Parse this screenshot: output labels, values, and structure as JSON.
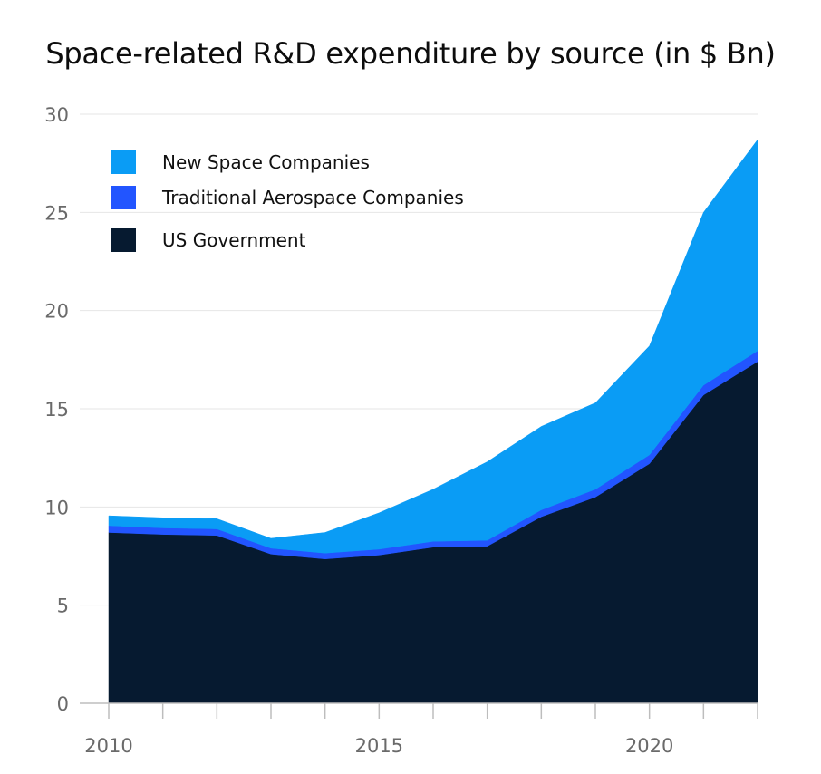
{
  "chart_data": {
    "type": "area",
    "stacked": true,
    "title": "Space-related R&D expenditure by source (in $ Bn)",
    "xlabel": "",
    "ylabel": "",
    "x": [
      2010,
      2011,
      2012,
      2013,
      2014,
      2015,
      2016,
      2017,
      2018,
      2019,
      2020,
      2021,
      2022
    ],
    "xlim": [
      2010,
      2022
    ],
    "ylim": [
      0,
      30
    ],
    "y_ticks": [
      0,
      5,
      10,
      15,
      20,
      25,
      30
    ],
    "x_ticks": [
      2010,
      2015,
      2020
    ],
    "grid": "horizontal",
    "legend_position": "top-left",
    "series": [
      {
        "name": "US Government",
        "color": "#061a30",
        "values": [
          8.7,
          8.6,
          8.55,
          7.6,
          7.35,
          7.55,
          7.95,
          8.0,
          9.5,
          10.5,
          12.2,
          15.7,
          17.4
        ]
      },
      {
        "name": "Traditional Aerospace Companies",
        "color": "#2255ff",
        "values": [
          0.35,
          0.33,
          0.33,
          0.3,
          0.3,
          0.3,
          0.3,
          0.3,
          0.35,
          0.4,
          0.45,
          0.5,
          0.55
        ]
      },
      {
        "name": "New Space Companies",
        "color": "#0a9cf5",
        "values": [
          0.5,
          0.52,
          0.52,
          0.5,
          1.05,
          1.85,
          2.65,
          4.0,
          4.25,
          4.4,
          5.55,
          8.8,
          10.75
        ]
      }
    ],
    "legend_order": [
      "New Space Companies",
      "Traditional Aerospace Companies",
      "US Government"
    ]
  }
}
